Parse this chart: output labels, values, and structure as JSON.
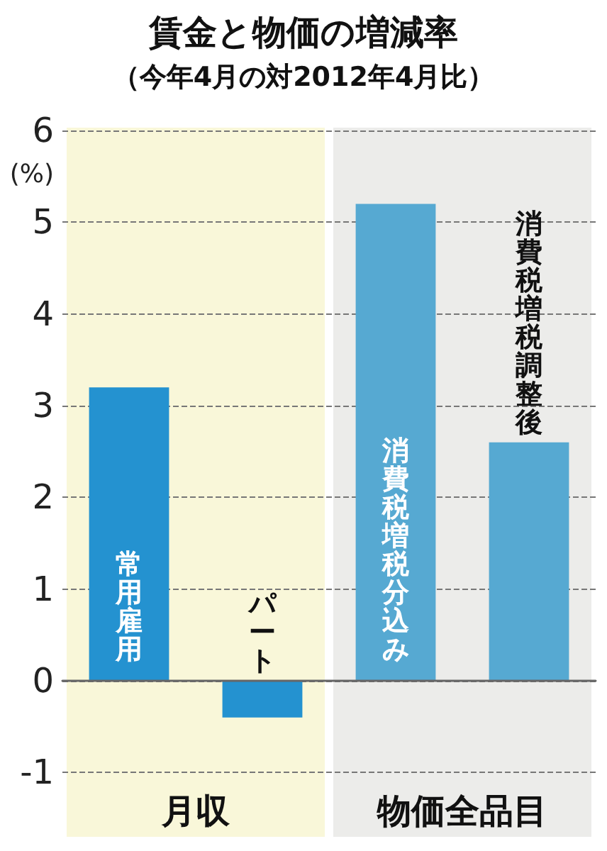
{
  "chart_data": {
    "type": "bar",
    "title": "賃金と物価の増減率",
    "subtitle": "（今年4月の対2012年4月比）",
    "ylabel": "(%)",
    "categories": [
      "常用雇用",
      "パート",
      "消費税増税分込み",
      "消費税増税調整後"
    ],
    "values": [
      3.2,
      -0.4,
      5.2,
      2.6
    ],
    "colors": [
      "#2492d0",
      "#2492d0",
      "#56a9d2",
      "#56a9d2"
    ],
    "ylim": [
      -1.7,
      6
    ],
    "yticks": [
      -1,
      0,
      1,
      2,
      3,
      4,
      5,
      6
    ],
    "grid": "y",
    "bands": [
      {
        "axis": "x",
        "from": "常用雇用",
        "to": "パート",
        "label": "月収",
        "color": "#f9f7d9"
      },
      {
        "axis": "x",
        "from": "消費税増税分込み",
        "to": "消費税増税調整後",
        "label": "物価全品目",
        "color": "#ececea"
      }
    ]
  }
}
